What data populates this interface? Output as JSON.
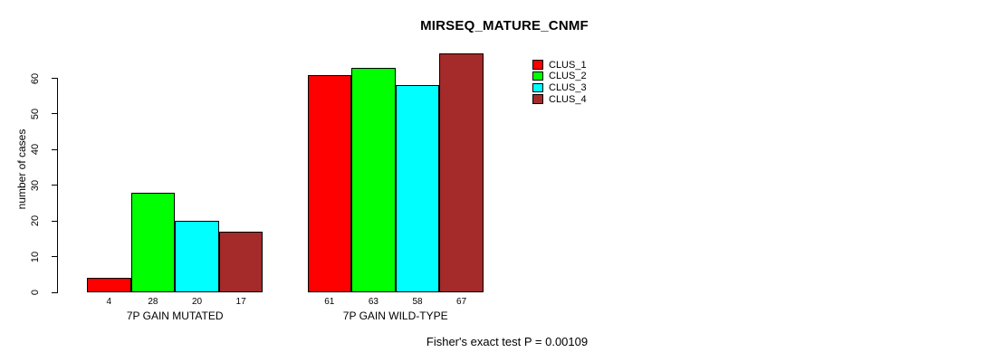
{
  "chart_data": {
    "type": "bar",
    "title": "MIRSEQ_MATURE_CNMF",
    "xlabel": "",
    "ylabel": "number of cases",
    "categories": [
      "7P GAIN MUTATED",
      "7P GAIN WILD-TYPE"
    ],
    "series": [
      {
        "name": "CLUS_1",
        "color": "#FF0000",
        "values": [
          4,
          61
        ]
      },
      {
        "name": "CLUS_2",
        "color": "#00FF00",
        "values": [
          28,
          63
        ]
      },
      {
        "name": "CLUS_3",
        "color": "#00FFFF",
        "values": [
          20,
          58
        ]
      },
      {
        "name": "CLUS_4",
        "color": "#A52A2A",
        "values": [
          17,
          67
        ]
      }
    ],
    "bar_value_labels": [
      [
        "4",
        "28",
        "20",
        "17"
      ],
      [
        "61",
        "63",
        "58",
        "67"
      ]
    ],
    "ylim": [
      0,
      60
    ],
    "yticks": [
      0,
      10,
      20,
      30,
      40,
      50,
      60
    ],
    "grid": false,
    "legend_position": "top-right",
    "annotation": "Fisher's exact test P = 0.00109",
    "bar_border_color": "#000000",
    "background_color": "#FFFFFF"
  }
}
